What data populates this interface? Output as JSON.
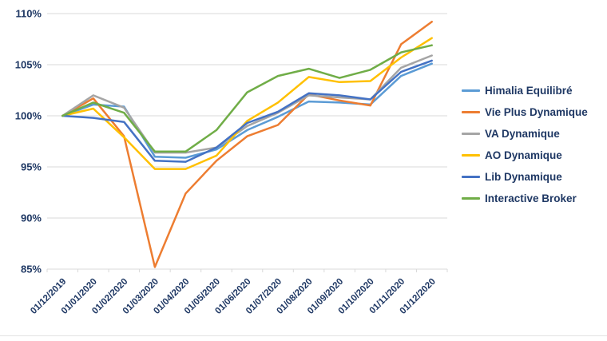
{
  "chart_data": {
    "type": "line",
    "title": "",
    "x_labels": [
      "01/12/2019",
      "01/01/2020",
      "01/02/2020",
      "01/03/2020",
      "01/04/2020",
      "01/05/2020",
      "01/06/2020",
      "01/07/2020",
      "01/08/2020",
      "01/09/2020",
      "01/10/2020",
      "01/11/2020",
      "01/12/2020"
    ],
    "y_axis": {
      "min": 85,
      "max": 110,
      "step": 5,
      "tick_labels": [
        "85%",
        "90%",
        "95%",
        "100%",
        "105%",
        "110%"
      ]
    },
    "grid": true,
    "legend_position": "right",
    "series": [
      {
        "name": "Himalia Equilibré",
        "color": "#5B9BD5",
        "values": [
          100,
          101.1,
          100.9,
          96.0,
          95.9,
          96.7,
          98.6,
          99.9,
          101.4,
          101.3,
          101.1,
          103.9,
          105.1
        ]
      },
      {
        "name": "Vie Plus Dynamique",
        "color": "#ED7D31",
        "values": [
          100,
          101.7,
          98.0,
          85.2,
          92.4,
          95.6,
          98.0,
          99.1,
          102.1,
          101.5,
          101.0,
          107.0,
          109.2
        ]
      },
      {
        "name": "VA Dynamique",
        "color": "#A5A5A5",
        "values": [
          100,
          102.0,
          100.8,
          96.4,
          96.4,
          96.9,
          99.0,
          100.3,
          102.0,
          101.8,
          101.6,
          104.7,
          105.9
        ]
      },
      {
        "name": "AO Dynamique",
        "color": "#FFC000",
        "values": [
          100,
          100.7,
          97.9,
          94.8,
          94.8,
          96.1,
          99.5,
          101.3,
          103.8,
          103.3,
          103.4,
          105.7,
          107.6
        ]
      },
      {
        "name": "Lib Dynamique",
        "color": "#4472C4",
        "values": [
          100,
          99.8,
          99.4,
          95.6,
          95.5,
          96.9,
          99.3,
          100.4,
          102.2,
          102.0,
          101.6,
          104.3,
          105.4
        ]
      },
      {
        "name": "Interactive Broker",
        "color": "#70AD47",
        "values": [
          100,
          101.3,
          100.3,
          96.5,
          96.5,
          98.6,
          102.3,
          103.9,
          104.6,
          103.7,
          104.5,
          106.2,
          106.9
        ]
      }
    ]
  },
  "styles": {
    "label_color": "#1F3864",
    "grid_color": "#D9D9D9",
    "axis_color": "#D9D9D9",
    "background": "#FFFFFF"
  }
}
